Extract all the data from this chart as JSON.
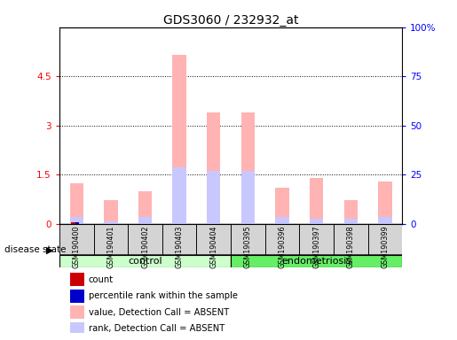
{
  "title": "GDS3060 / 232932_at",
  "samples": [
    "GSM190400",
    "GSM190401",
    "GSM190402",
    "GSM190403",
    "GSM190404",
    "GSM190395",
    "GSM190396",
    "GSM190397",
    "GSM190398",
    "GSM190399"
  ],
  "n_control": 5,
  "n_endo": 5,
  "value_absent": [
    1.25,
    0.72,
    1.0,
    5.15,
    3.4,
    3.4,
    1.1,
    1.4,
    0.72,
    1.3
  ],
  "rank_absent": [
    0.22,
    0.09,
    0.2,
    1.72,
    1.62,
    1.62,
    0.22,
    0.15,
    0.15,
    0.22
  ],
  "count_present": [
    0.06,
    0.0,
    0.0,
    0.0,
    0.0,
    0.0,
    0.0,
    0.0,
    0.0,
    0.0
  ],
  "percentile_present": [
    0.05,
    0.0,
    0.0,
    0.0,
    0.0,
    0.0,
    0.0,
    0.0,
    0.0,
    0.0
  ],
  "ylim_left": [
    0,
    6
  ],
  "yticks_left": [
    0,
    1.5,
    3.0,
    4.5
  ],
  "ytick_labels_left": [
    "0",
    "1.5",
    "3",
    "4.5"
  ],
  "ylim_right": [
    0,
    100
  ],
  "yticks_right": [
    0,
    25,
    50,
    75,
    100
  ],
  "ytick_labels_right": [
    "0",
    "25",
    "50",
    "75",
    "100%"
  ],
  "color_value_absent": "#ffb3b3",
  "color_rank_absent": "#c8c8ff",
  "color_count": "#cc0000",
  "color_percentile": "#0000cc",
  "bar_width": 0.18,
  "color_control": "#ccffcc",
  "color_endo": "#66ee66",
  "color_sample_bg": "#d4d4d4"
}
